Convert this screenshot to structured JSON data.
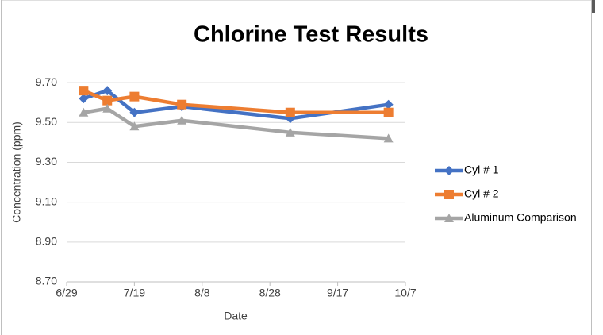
{
  "chart_data": {
    "type": "line",
    "title": "Chlorine Test Results",
    "x_label": "Date",
    "y_label": "Concentration (ppm)",
    "x": [
      185,
      192,
      200,
      214,
      246,
      275
    ],
    "series": [
      {
        "name": "Cyl # 1",
        "color": "#4472c4",
        "marker": "diamond",
        "values": [
          9.62,
          9.66,
          9.55,
          9.58,
          9.52,
          9.59
        ]
      },
      {
        "name": "Cyl # 2",
        "color": "#ed7d31",
        "marker": "square",
        "values": [
          9.66,
          9.61,
          9.63,
          9.59,
          9.55,
          9.55
        ]
      },
      {
        "name": "Aluminum Comparison",
        "color": "#a5a5a5",
        "marker": "triangle",
        "values": [
          9.55,
          9.57,
          9.48,
          9.51,
          9.45,
          9.42
        ]
      }
    ],
    "xlim": [
      180,
      280
    ],
    "xticks": [
      {
        "value": 180,
        "label": "6/29"
      },
      {
        "value": 200,
        "label": "7/19"
      },
      {
        "value": 220,
        "label": "8/8"
      },
      {
        "value": 240,
        "label": "8/28"
      },
      {
        "value": 260,
        "label": "9/17"
      },
      {
        "value": 280,
        "label": "10/7"
      }
    ],
    "ylim": [
      8.7,
      9.8
    ],
    "yticks": [
      {
        "value": 8.7,
        "label": "8.70"
      },
      {
        "value": 8.9,
        "label": "8.90"
      },
      {
        "value": 9.1,
        "label": "9.10"
      },
      {
        "value": 9.3,
        "label": "9.30"
      },
      {
        "value": 9.5,
        "label": "9.50"
      },
      {
        "value": 9.7,
        "label": "9.70"
      }
    ],
    "grid": true,
    "legend": "right"
  }
}
